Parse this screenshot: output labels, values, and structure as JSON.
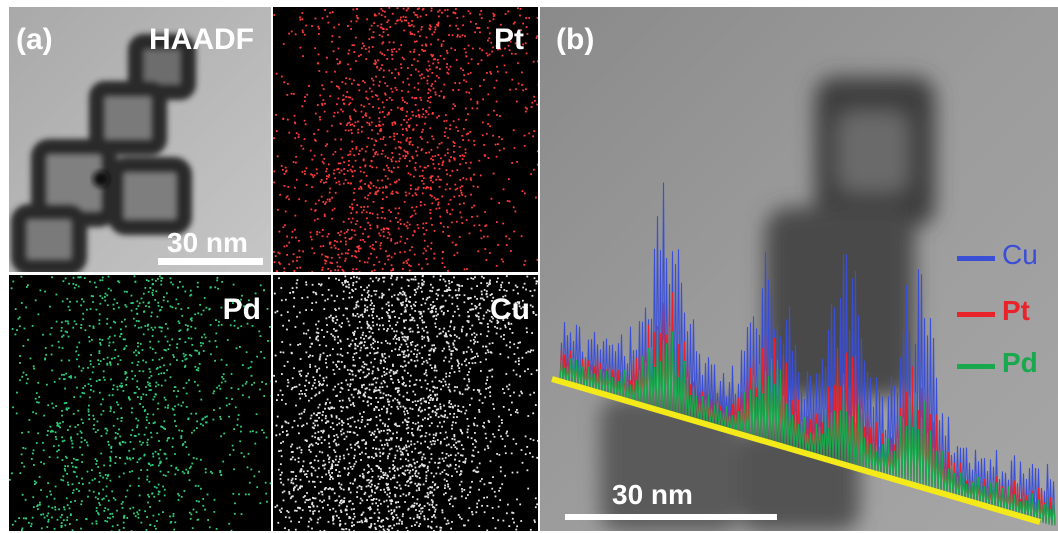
{
  "panel_a": {
    "label": "(a)",
    "haadf": {
      "label": "HAADF",
      "scale_text": "30 nm"
    },
    "pt": {
      "label": "Pt",
      "color": "#ff3a3a"
    },
    "pd": {
      "label": "Pd",
      "color": "#2fd07a"
    },
    "cu": {
      "label": "Cu",
      "color": "#e6e6e6"
    }
  },
  "panel_b": {
    "label": "(b)",
    "scale_text": "30 nm",
    "legend": [
      {
        "label": "Cu",
        "color": "#3a4fd6"
      },
      {
        "label": "Pt",
        "color": "#e8232a"
      },
      {
        "label": "Pd",
        "color": "#18a84e"
      }
    ],
    "line_color": "#f4ea1a"
  }
}
